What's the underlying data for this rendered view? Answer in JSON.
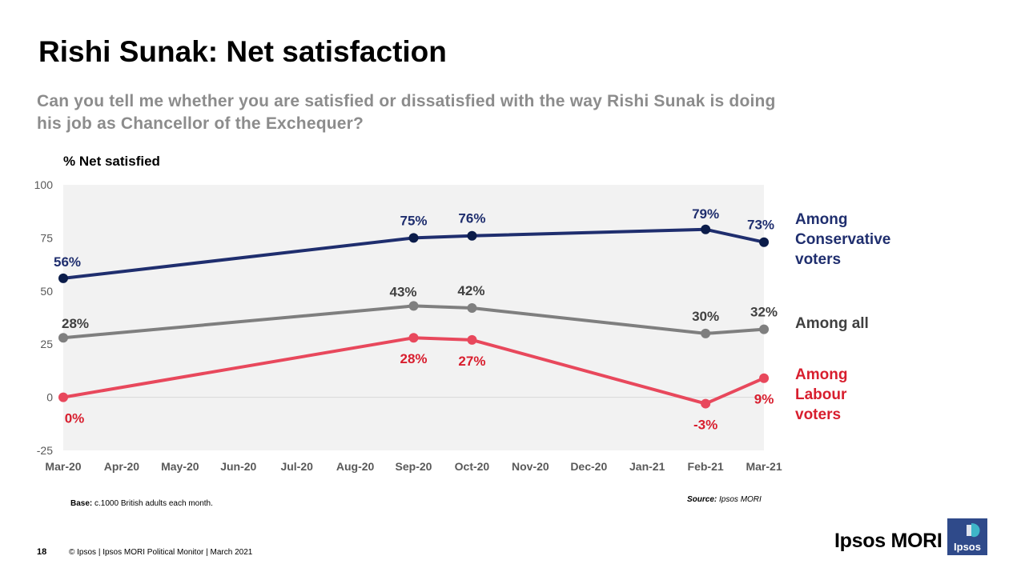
{
  "title": "Rishi Sunak: Net satisfaction",
  "question": "Can you tell me whether you are satisfied or dissatisfied with the way Rishi Sunak is doing his job as Chancellor of the Exchequer?",
  "footer": {
    "page_number": "18",
    "copyright": "© Ipsos | Ipsos MORI  Political Monitor | March 2021",
    "base_label": "Base:",
    "base_text": " c.1000 British adults each month.",
    "source_label": "Source:",
    "source_text": " Ipsos MORI",
    "brand": "Ipsos MORI",
    "logo_text": "Ipsos"
  },
  "colors": {
    "conservative": "#1f2e6e",
    "conservative_dot": "#0b1c4a",
    "all": "#7f7f7f",
    "labour": "#e8485c",
    "labour_text": "#d81e2e",
    "plot_bg": "#f2f2f2",
    "logo": "#2f4a8a",
    "logo_accent": "#3fb6c8"
  },
  "chart_data": {
    "type": "line",
    "title": "Rishi Sunak: Net satisfaction",
    "ylabel": "% Net satisfied",
    "xlabel": "",
    "ylim": [
      -25,
      100
    ],
    "yticks": [
      -25,
      0,
      25,
      50,
      75,
      100
    ],
    "categories": [
      "Mar-20",
      "Apr-20",
      "May-20",
      "Jun-20",
      "Jul-20",
      "Aug-20",
      "Sep-20",
      "Oct-20",
      "Nov-20",
      "Dec-20",
      "Jan-21",
      "Feb-21",
      "Mar-21"
    ],
    "series": [
      {
        "key": "conservative",
        "name": "Among Conservative voters",
        "name_lines": [
          "Among",
          "Conservative",
          "voters"
        ],
        "points": [
          {
            "i": 0,
            "value": 56,
            "label": "56%"
          },
          {
            "i": 6,
            "value": 75,
            "label": "75%"
          },
          {
            "i": 7,
            "value": 76,
            "label": "76%"
          },
          {
            "i": 11,
            "value": 79,
            "label": "79%"
          },
          {
            "i": 12,
            "value": 73,
            "label": "73%"
          }
        ]
      },
      {
        "key": "all",
        "name": "Among all",
        "name_lines": [
          "Among all"
        ],
        "points": [
          {
            "i": 0,
            "value": 28,
            "label": "28%"
          },
          {
            "i": 6,
            "value": 43,
            "label": "43%"
          },
          {
            "i": 7,
            "value": 42,
            "label": "42%"
          },
          {
            "i": 11,
            "value": 30,
            "label": "30%"
          },
          {
            "i": 12,
            "value": 32,
            "label": "32%"
          }
        ]
      },
      {
        "key": "labour",
        "name": "Among Labour voters",
        "name_lines": [
          "Among",
          "Labour",
          "voters"
        ],
        "points": [
          {
            "i": 0,
            "value": 0,
            "label": "0%"
          },
          {
            "i": 6,
            "value": 28,
            "label": "28%"
          },
          {
            "i": 7,
            "value": 27,
            "label": "27%"
          },
          {
            "i": 11,
            "value": -3,
            "label": "-3%"
          },
          {
            "i": 12,
            "value": 9,
            "label": "9%"
          }
        ]
      }
    ]
  }
}
